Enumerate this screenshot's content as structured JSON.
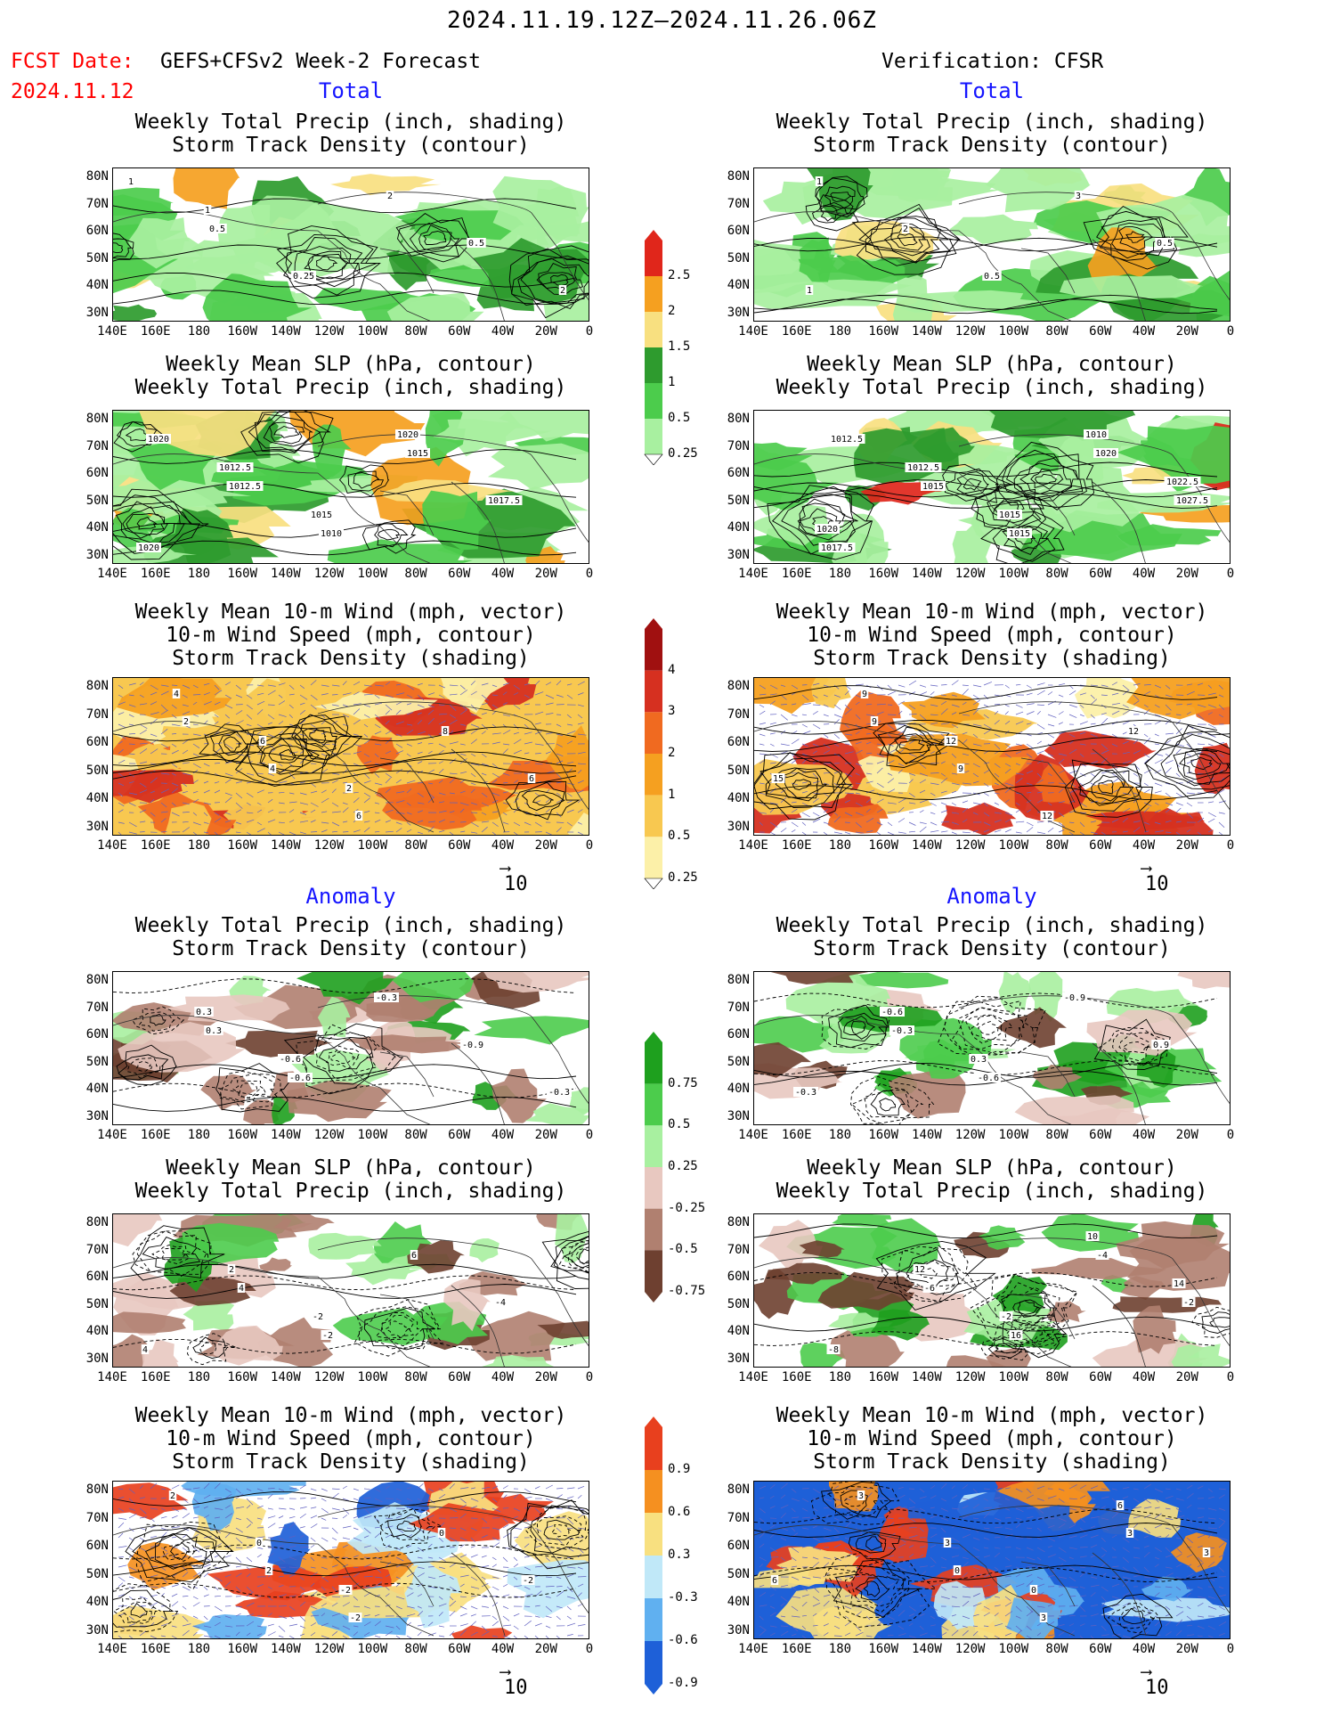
{
  "header": {
    "time_range": "2024.11.19.12Z–2024.11.26.06Z",
    "fcst_label": "FCST Date:",
    "fcst_date": "2024.11.12",
    "model": "GEFS+CFSv2 Week-2 Forecast",
    "verification": "Verification: CFSR"
  },
  "sections": {
    "total": "Total",
    "anomaly": "Anomaly"
  },
  "panel_titles": {
    "precip_storm": [
      "Weekly Total Precip (inch, shading)",
      "Storm Track Density (contour)"
    ],
    "slp_precip": [
      "Weekly Mean SLP (hPa, contour)",
      "Weekly Total Precip (inch, shading)"
    ],
    "wind": [
      "Weekly Mean 10-m Wind (mph, vector)",
      "10-m Wind Speed (mph, contour)",
      "Storm Track Density (shading)"
    ]
  },
  "axes": {
    "lat_labels": [
      "80N",
      "70N",
      "60N",
      "50N",
      "40N",
      "30N"
    ],
    "lon_labels": [
      "140E",
      "160E",
      "180",
      "160W",
      "140W",
      "120W",
      "100W",
      "80W",
      "60W",
      "40W",
      "20W",
      "0"
    ]
  },
  "vector_ref": "10",
  "colorbars": {
    "precip_total": {
      "labels": [
        "2.5",
        "2",
        "1.5",
        "1",
        "0.5",
        "0.25"
      ],
      "colors": [
        "#e0261b",
        "#f5a020",
        "#f8e080",
        "#2e9b2e",
        "#4ccc4c",
        "#a8f0a0"
      ]
    },
    "std_total": {
      "labels": [
        "4",
        "3",
        "2",
        "1",
        "0.5",
        "0.25"
      ],
      "colors": [
        "#a01010",
        "#d63020",
        "#f06a20",
        "#f5a020",
        "#f8c850",
        "#fcf0a8"
      ]
    },
    "precip_anom": {
      "labels": [
        "0.75",
        "0.5",
        "0.25",
        "-0.25",
        "-0.5",
        "-0.75"
      ],
      "colors": [
        "#1ea01e",
        "#4ccc4c",
        "#a8f0a0",
        "#e8c8c0",
        "#b08070",
        "#6e4030"
      ]
    },
    "std_anom": {
      "labels": [
        "0.9",
        "0.6",
        "0.3",
        "-0.3",
        "-0.6",
        "-0.9"
      ],
      "colors": [
        "#e8401e",
        "#f59020",
        "#f8e080",
        "#c0e8f8",
        "#60b0f0",
        "#1e60d8"
      ]
    }
  },
  "contour_labels": {
    "f_total_1": [
      "1",
      "0.5",
      "0.25",
      "2",
      "0.5",
      "2",
      "1"
    ],
    "f_total_2": [
      "1020",
      "1012.5",
      "1010",
      "1015",
      "1017.5",
      "1020",
      "1012.5",
      "1015",
      "1020"
    ],
    "f_total_3": [
      "2",
      "4",
      "6",
      "8",
      "6",
      "4",
      "6",
      "2"
    ],
    "v_total_1": [
      "1",
      "2",
      "0.5",
      "3",
      "0.5",
      "1"
    ],
    "v_total_2": [
      "1012.5",
      "1015",
      "1015",
      "1020",
      "1027.5",
      "1017.5",
      "1012.5",
      "1015",
      "1010",
      "1022.5",
      "1020"
    ],
    "v_total_3": [
      "9",
      "9",
      "12",
      "12",
      "15",
      "9",
      "12"
    ],
    "f_anom_1": [
      "0.3",
      "-0.6",
      "-0.3",
      "-0.9",
      "-0.3",
      "0.3",
      "-0.6"
    ],
    "f_anom_2": [
      "4",
      "-2",
      "6",
      "-4",
      "4",
      "2",
      "-2"
    ],
    "f_anom_3": [
      "2",
      "-2",
      "0",
      "-2",
      "2",
      "0",
      "-2"
    ],
    "v_anom_1": [
      "-0.3",
      "-0.6",
      "-0.9",
      "0.9",
      "-0.3",
      "-0.6",
      "0.3"
    ],
    "v_anom_2": [
      "-6",
      "16",
      "-4",
      "-2",
      "-8",
      "12",
      "-2",
      "10",
      "14"
    ],
    "v_anom_3": [
      "0",
      "3",
      "3",
      "6",
      "3",
      "3",
      "0",
      "6",
      "3"
    ]
  }
}
